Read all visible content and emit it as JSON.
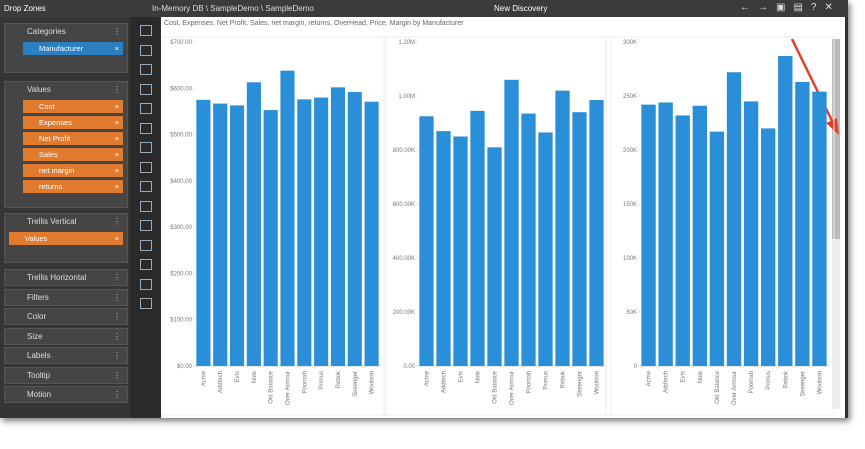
{
  "header": {
    "breadcrumb": "In-Memory DB \\ SampleDemo \\ SampleDemo",
    "title": "New Discovery"
  },
  "drop_zones": {
    "title": "Drop Zones",
    "categories": {
      "label": "Categories",
      "items": [
        "Manufacturer"
      ]
    },
    "values": {
      "label": "Values",
      "items": [
        "Cost",
        "Expenses",
        "Net Profit",
        "Sales",
        "net margin",
        "returns"
      ]
    },
    "trellis_vertical": {
      "label": "Trellis Vertical",
      "items": [
        "Values"
      ]
    },
    "sections": [
      "Trellis Horizontal",
      "Filters",
      "Color",
      "Size",
      "Labels",
      "Tooltip",
      "Motion"
    ]
  },
  "caption": "Cost, Expenses, Net Profit, Sales, net margin, returns, OverHead, Price, Margin by Manufacturer",
  "chart_data": [
    {
      "type": "bar",
      "color": "#2a8fd8",
      "grid": false,
      "categories": [
        "Acme",
        "Addtech",
        "Evis",
        "Nole",
        "Old Balance",
        "Over Armour",
        "Poomah",
        "Primus",
        "Rebok",
        "Skeenger",
        "Woolson"
      ],
      "values": [
        575,
        567,
        563,
        613,
        553,
        638,
        576,
        580,
        602,
        592,
        571
      ],
      "ylim": [
        0,
        700
      ],
      "yticks": [
        {
          "value": 0,
          "label": "$0.00"
        },
        {
          "value": 100,
          "label": "$100.00"
        },
        {
          "value": 200,
          "label": "$200.00"
        },
        {
          "value": 300,
          "label": "$300.00"
        },
        {
          "value": 400,
          "label": "$400.00"
        },
        {
          "value": 500,
          "label": "$500.00"
        },
        {
          "value": 600,
          "label": "$600.00"
        },
        {
          "value": 700,
          "label": "$700.00"
        }
      ]
    },
    {
      "type": "bar",
      "color": "#2a8fd8",
      "grid": false,
      "categories": [
        "Acme",
        "Addtech",
        "Evis",
        "Nole",
        "Old Balance",
        "Over Armour",
        "Poomah",
        "Primus",
        "Rebok",
        "Skeenger",
        "Woolson"
      ],
      "values": [
        925000,
        870000,
        850000,
        945000,
        810000,
        1060000,
        935000,
        865000,
        1020000,
        940000,
        985000
      ],
      "ylim": [
        0,
        1200000
      ],
      "yticks": [
        {
          "value": 0,
          "label": "0.00"
        },
        {
          "value": 200000,
          "label": "200.00K"
        },
        {
          "value": 400000,
          "label": "400.00K"
        },
        {
          "value": 600000,
          "label": "600.00K"
        },
        {
          "value": 800000,
          "label": "800.00K"
        },
        {
          "value": 1000000,
          "label": "1.00M"
        },
        {
          "value": 1200000,
          "label": "1.20M"
        }
      ]
    },
    {
      "type": "bar",
      "color": "#2a8fd8",
      "grid": false,
      "categories": [
        "Acme",
        "Addtech",
        "Evis",
        "Nole",
        "Old Balance",
        "Over Armour",
        "Poomah",
        "Primus",
        "Rebok",
        "Skeenger",
        "Woolson"
      ],
      "values": [
        242000,
        244000,
        232000,
        241000,
        217000,
        272000,
        245000,
        220000,
        287000,
        263000,
        254000
      ],
      "ylim": [
        0,
        300000
      ],
      "yticks": [
        {
          "value": 0,
          "label": "0"
        },
        {
          "value": 50000,
          "label": "50K"
        },
        {
          "value": 100000,
          "label": "100K"
        },
        {
          "value": 150000,
          "label": "150K"
        },
        {
          "value": 200000,
          "label": "200K"
        },
        {
          "value": 250000,
          "label": "250K"
        },
        {
          "value": 300000,
          "label": "300K"
        }
      ]
    }
  ]
}
